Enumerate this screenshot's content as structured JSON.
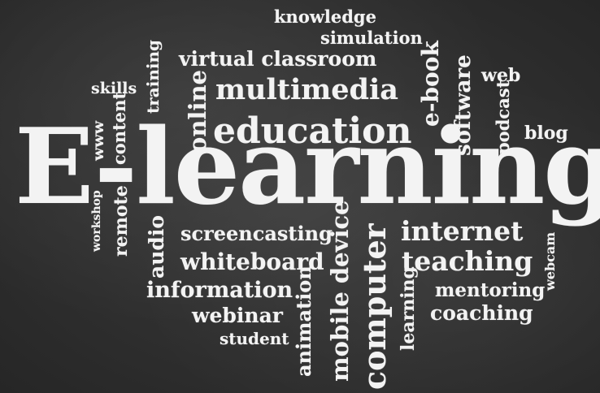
{
  "words": {
    "title": "E-learning",
    "knowledge": "knowledge",
    "simulation": "simulation",
    "virtual_classroom": "virtual classroom",
    "training": "training",
    "skills": "skills",
    "multimedia": "multimedia",
    "online": "online",
    "e_book": "e-book",
    "software": "software",
    "web": "web",
    "podcast": "podcast",
    "blog": "blog",
    "education": "education",
    "www": "www",
    "content": "content",
    "workshop": "workshop",
    "remote": "remote",
    "audio": "audio",
    "screencasting": "screencasting",
    "mobile_device": "mobile device",
    "computer": "computer",
    "internet": "internet",
    "webcam": "webcam",
    "whiteboard": "whiteboard",
    "teaching": "teaching",
    "information": "information",
    "animation": "animation",
    "learning": "learning",
    "mentoring": "mentoring",
    "webinar": "webinar",
    "coaching": "coaching",
    "student": "student"
  }
}
